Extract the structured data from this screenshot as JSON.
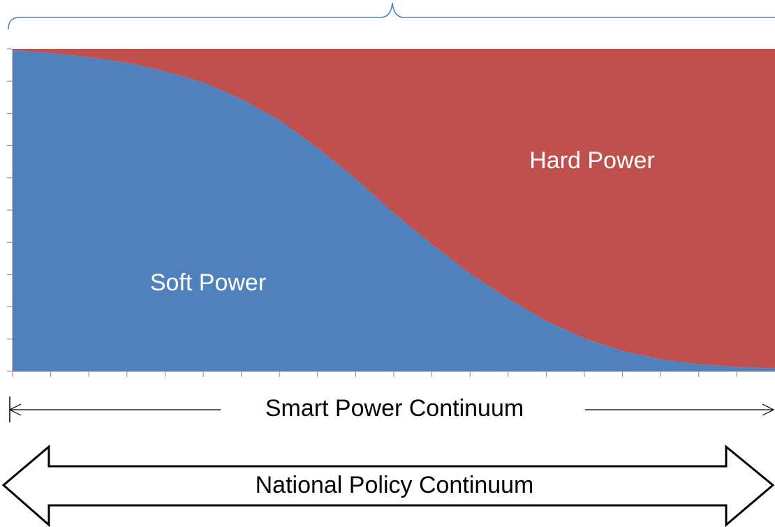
{
  "chart_data": {
    "type": "area",
    "stacked": true,
    "categories": [
      null,
      null,
      null,
      null,
      null,
      null,
      null,
      null,
      null,
      null,
      null,
      null,
      null,
      null,
      null,
      null,
      null,
      null,
      null,
      null,
      null
    ],
    "series": [
      {
        "name": "Soft Power",
        "color": "#4f81bd",
        "values": [
          99.6,
          98.7,
          97.4,
          95.7,
          93,
          89.6,
          84.4,
          77.9,
          69.3,
          59.7,
          49.1,
          39.4,
          30.3,
          22.5,
          15.6,
          10.2,
          6.3,
          3.7,
          2.2,
          1.3,
          0.9
        ]
      },
      {
        "name": "Hard Power",
        "color": "#c0504d",
        "values": [
          0.4,
          1.3,
          2.6,
          4.3,
          7,
          10.4,
          15.6,
          22.1,
          30.7,
          40.3,
          50.9,
          60.6,
          69.7,
          77.5,
          84.4,
          89.8,
          93.7,
          96.3,
          97.8,
          98.7,
          99.1
        ]
      }
    ],
    "ylim": [
      0,
      100
    ],
    "yticks": [
      0,
      10,
      20,
      30,
      40,
      50,
      60,
      70,
      80,
      90,
      100
    ],
    "annotations": [
      "Smart Power Continuum",
      "National Policy Continuum"
    ]
  }
}
